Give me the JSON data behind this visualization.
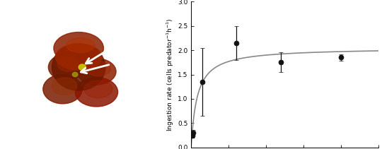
{
  "x_data": [
    2,
    3,
    15,
    60,
    120,
    200
  ],
  "y_data": [
    0.25,
    0.3,
    1.35,
    2.15,
    1.75,
    1.85
  ],
  "y_err": [
    0.05,
    0.06,
    0.7,
    0.35,
    0.2,
    0.07
  ],
  "curve_Vmax": 2.05,
  "curve_Km": 8.0,
  "xlim": [
    0,
    250
  ],
  "ylim": [
    0.0,
    3.0
  ],
  "xticks": [
    0,
    50,
    100,
    150,
    200,
    250
  ],
  "yticks": [
    0.0,
    0.5,
    1.0,
    1.5,
    2.0,
    2.5,
    3.0
  ],
  "marker_color": "#111111",
  "marker_size": 5,
  "line_color": "#888888",
  "line_width": 1.2,
  "elinewidth": 0.9,
  "capsize": 2.0,
  "background_color": "#ffffff",
  "micro_bg": "#000000",
  "figure_width": 5.4,
  "figure_height": 2.11
}
